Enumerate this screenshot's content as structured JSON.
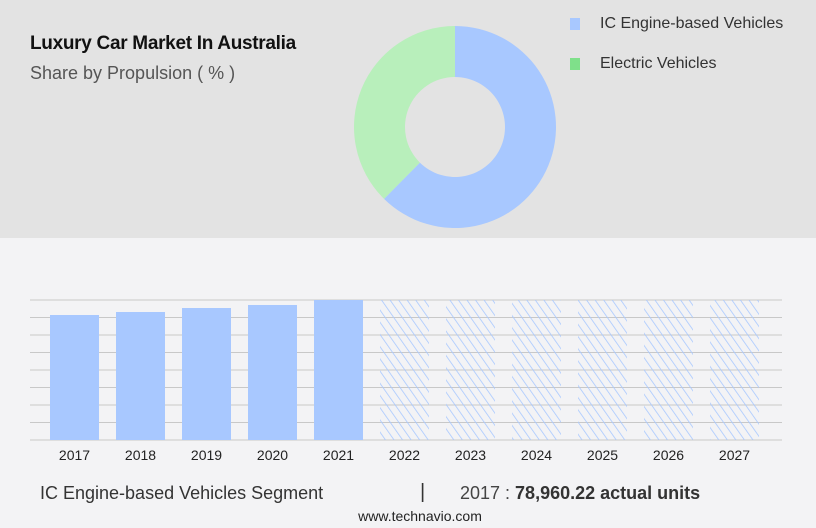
{
  "chart_data": [
    {
      "type": "pie",
      "title": "Luxury Car Market In Australia",
      "subtitle": "Share by Propulsion ( % )",
      "donut": true,
      "legend_placement": "top-right",
      "slices": [
        {
          "name": "IC Engine-based Vehicles",
          "value": 62.4,
          "color": "#a8c8ff"
        },
        {
          "name": "Electric Vehicles",
          "value": 37.6,
          "color": "#b8efbb",
          "legend_color": "#7fe08a"
        }
      ]
    },
    {
      "type": "bar",
      "categories": [
        "2017",
        "2018",
        "2019",
        "2020",
        "2021",
        "2022",
        "2023",
        "2024",
        "2025",
        "2026",
        "2027"
      ],
      "values": [
        78960.22,
        80855,
        83380,
        85280,
        88435,
        null,
        null,
        null,
        null,
        null,
        null
      ],
      "forecast_categories": [
        "2022",
        "2023",
        "2024",
        "2025",
        "2026",
        "2027"
      ],
      "forecast_style": "hatched",
      "ylim": [
        0,
        88435
      ],
      "grid": true,
      "bar_color": "#a8c8ff",
      "xlabel": "",
      "ylabel": ""
    }
  ],
  "footer": {
    "segment": "IC Engine-based Vehicles Segment",
    "separator": "|",
    "year_label": "2017 : ",
    "value": "78,960.22 actual units",
    "website": "www.technavio.com"
  }
}
